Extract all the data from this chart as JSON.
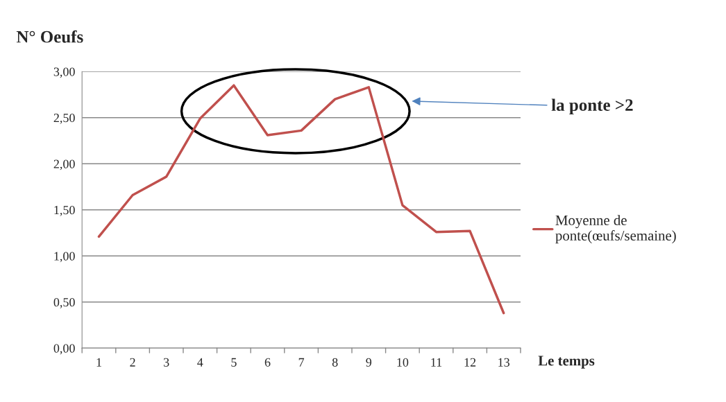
{
  "chart_data": {
    "type": "line",
    "ylabel": "N° Oeufs",
    "xlabel": "Le temps",
    "categories": [
      "1",
      "2",
      "3",
      "4",
      "5",
      "6",
      "7",
      "8",
      "9",
      "10",
      "11",
      "12",
      "13"
    ],
    "series": [
      {
        "name": "Moyenne de ponte(œufs/semaine)",
        "color": "#c0504d",
        "values": [
          1.21,
          1.66,
          1.86,
          2.49,
          2.85,
          2.31,
          2.36,
          2.7,
          2.83,
          1.55,
          1.26,
          1.27,
          0.38
        ]
      }
    ],
    "ylim": [
      0,
      3
    ],
    "yticks": [
      {
        "value": 0,
        "label": "0,00"
      },
      {
        "value": 0.5,
        "label": "0,50"
      },
      {
        "value": 1,
        "label": "1,00"
      },
      {
        "value": 1.5,
        "label": "1,50"
      },
      {
        "value": 2,
        "label": "2,00"
      },
      {
        "value": 2.5,
        "label": "2,50"
      },
      {
        "value": 3,
        "label": "3,00"
      }
    ],
    "annotations": [
      "la ponte >2"
    ],
    "grid": "y",
    "legend": "right",
    "marker": "none",
    "line_style": "solid"
  }
}
